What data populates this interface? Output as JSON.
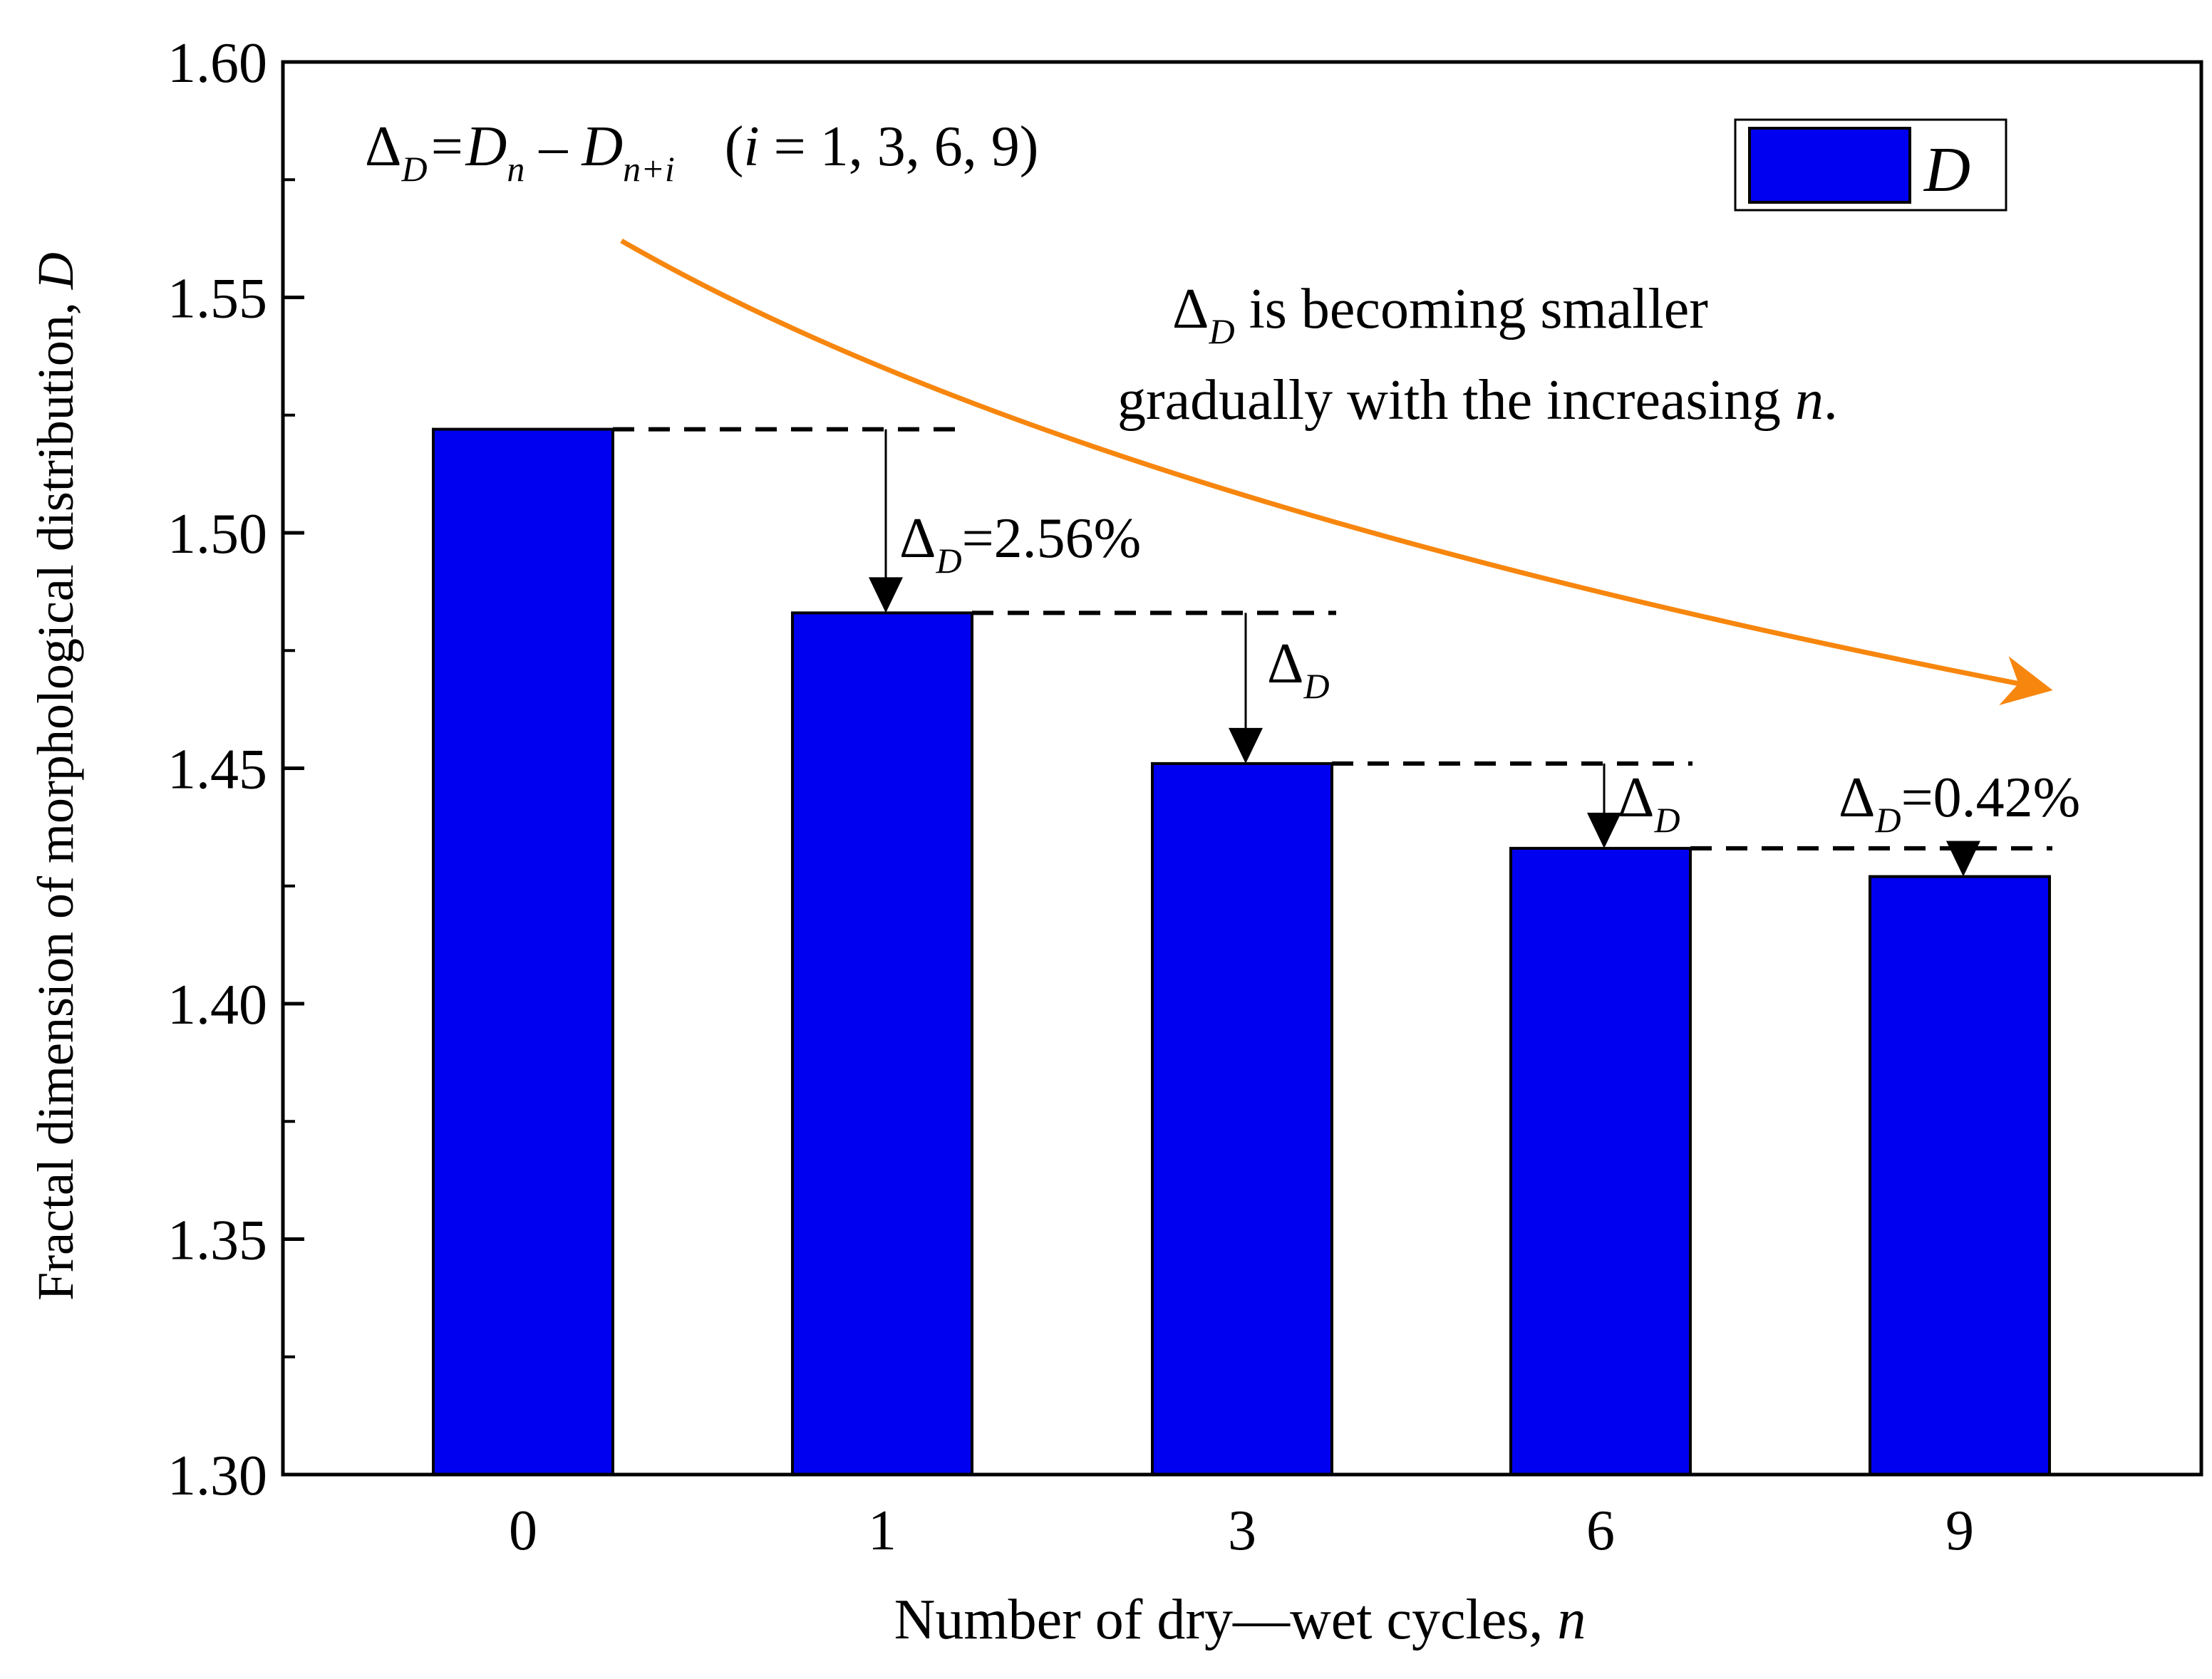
{
  "chart_data": {
    "type": "bar",
    "categories": [
      "0",
      "1",
      "3",
      "6",
      "9"
    ],
    "values": [
      1.522,
      1.483,
      1.451,
      1.433,
      1.427
    ],
    "series": [
      {
        "name": "D",
        "values": [
          1.522,
          1.483,
          1.451,
          1.433,
          1.427
        ]
      }
    ],
    "xlabel": "Number of dry—wet cycles, ",
    "xlabel_var": "n",
    "ylabel": "Fractal dimension of morphological distribution, ",
    "ylabel_var": "D",
    "ylim": [
      1.3,
      1.6
    ],
    "yticks": [
      "1.30",
      "1.35",
      "1.40",
      "1.45",
      "1.50",
      "1.55",
      "1.60"
    ],
    "ytick_values": [
      1.3,
      1.35,
      1.4,
      1.45,
      1.5,
      1.55,
      1.6
    ],
    "legend": {
      "label": "D",
      "position": "top-right"
    },
    "grid": false,
    "colors": {
      "bar": "#0000f0",
      "trend_arrow": "#f7860e",
      "axis": "#000000"
    },
    "annotations": {
      "formula": {
        "delta": "Δ",
        "delta_sub": "D",
        "eq_D": "=D",
        "sub_n": "n",
        "minus_D": " – D",
        "sub_n_i": "n+i",
        "cond_open": "(",
        "cond_i": "i",
        "cond_rest": " = 1, 3, 6, 9)"
      },
      "trend_text": {
        "line1_delta": "Δ",
        "line1_sub": "D",
        "line1_rest": " is becoming smaller",
        "line2": "gradually with the increasing ",
        "line2_var": "n",
        "line2_end": "."
      },
      "drops": [
        {
          "delta": "Δ",
          "sub": "D",
          "value": "=2.56%"
        },
        {
          "delta": "Δ",
          "sub": "D",
          "value": ""
        },
        {
          "delta": "Δ",
          "sub": "D",
          "value": ""
        },
        {
          "delta": "Δ",
          "sub": "D",
          "value": "=0.42%"
        }
      ]
    }
  }
}
